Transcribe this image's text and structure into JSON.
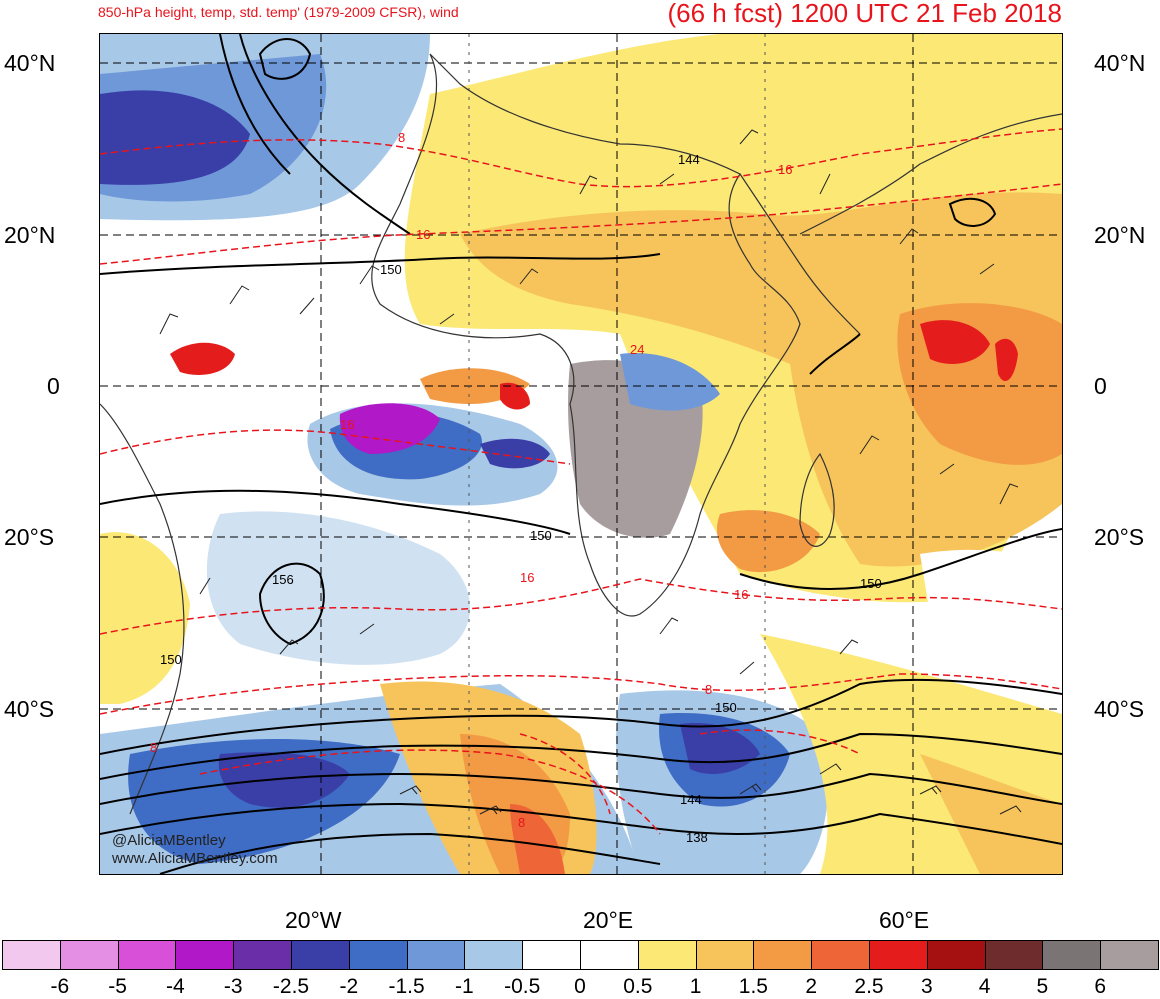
{
  "header": {
    "title_left": "850-hPa height, temp, std. temp' (1979-2009 CFSR), wind",
    "title_right": "(66 h fcst) 1200 UTC 21 Feb 2018"
  },
  "axes": {
    "lat_labels_left": [
      "40°N",
      "20°N",
      "0",
      "20°S",
      "40°S"
    ],
    "lat_labels_right": [
      "40°N",
      "20°N",
      "0",
      "20°S",
      "40°S"
    ],
    "lon_labels": [
      "20°W",
      "20°E",
      "60°E"
    ]
  },
  "contour_labels": {
    "height": [
      "144",
      "150",
      "150",
      "156",
      "150",
      "150",
      "150",
      "144",
      "138"
    ],
    "temp": [
      "8",
      "16",
      "16",
      "16",
      "24",
      "16",
      "16",
      "8",
      "8",
      "8"
    ]
  },
  "credit": {
    "handle": "@AliciaMBentley",
    "site": "www.AliciaMBentley.com"
  },
  "colorbar": {
    "labels": [
      "-6",
      "-5",
      "-4",
      "-3",
      "-2.5",
      "-2",
      "-1.5",
      "-1",
      "-0.5",
      "0",
      "0.5",
      "1",
      "1.5",
      "2",
      "2.5",
      "3",
      "4",
      "5",
      "6"
    ],
    "colors": [
      "#f3c8ee",
      "#e58fe4",
      "#d84fd8",
      "#b018c8",
      "#6a2ea8",
      "#3a3fa8",
      "#3f6cc4",
      "#6f98d8",
      "#a8c8e8",
      "#ffffff",
      "#ffffff",
      "#fbe875",
      "#f6c45a",
      "#f39a45",
      "#ee6638",
      "#e51c1c",
      "#a51010",
      "#6f2c2c",
      "#7a7475",
      "#a79d9e"
    ]
  }
}
